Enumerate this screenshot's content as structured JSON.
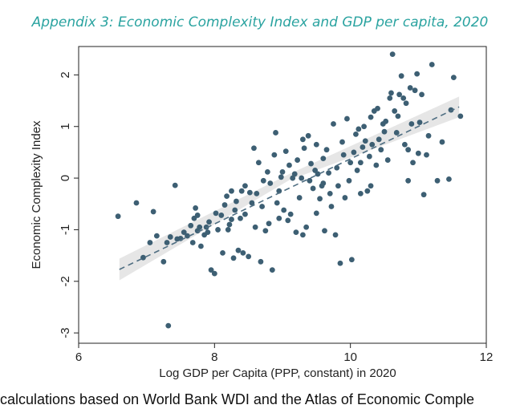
{
  "title": "Appendix 3: Economic Complexity Index and GDP per capita, 2020",
  "footnote": "calculations based on World Bank WDI and the Atlas of Economic Comple",
  "colors": {
    "title": "#2aa3a0",
    "points": "#3d5f73",
    "fit_line": "#4f6e82",
    "ci_band": "#e6e6e6"
  },
  "chart_data": {
    "type": "scatter",
    "title": "",
    "xlabel": "Log GDP per Capita (PPP, constant) in 2020",
    "ylabel": "Economic Complexity Index",
    "xlim": [
      6.0,
      12.0
    ],
    "ylim": [
      -3.2,
      2.55
    ],
    "x_ticks": [
      6,
      8,
      10,
      12
    ],
    "y_ticks": [
      2,
      1,
      0,
      -1,
      -2,
      -3
    ],
    "grid": false,
    "legend": "none",
    "fit_line": {
      "style": "dashed",
      "x_start": 6.6,
      "y_start": -1.77,
      "x_end": 11.6,
      "y_end": 1.38
    },
    "ci_band": {
      "x": [
        6.6,
        9.1,
        11.6
      ],
      "lower": [
        -1.98,
        -0.04,
        1.18
      ],
      "upper": [
        -1.56,
        0.08,
        1.58
      ]
    },
    "points": [
      [
        6.58,
        -0.74
      ],
      [
        6.85,
        -0.48
      ],
      [
        6.95,
        -1.54
      ],
      [
        7.05,
        -1.25
      ],
      [
        7.1,
        -0.65
      ],
      [
        7.15,
        -1.12
      ],
      [
        7.25,
        -1.62
      ],
      [
        7.3,
        -1.25
      ],
      [
        7.35,
        -1.14
      ],
      [
        7.32,
        -2.86
      ],
      [
        7.42,
        -0.14
      ],
      [
        7.45,
        -1.18
      ],
      [
        7.5,
        -1.17
      ],
      [
        7.55,
        -1.05
      ],
      [
        7.6,
        -1.12
      ],
      [
        7.65,
        -0.92
      ],
      [
        7.68,
        -1.25
      ],
      [
        7.7,
        -0.78
      ],
      [
        7.72,
        -0.58
      ],
      [
        7.75,
        -1.02
      ],
      [
        7.78,
        -0.95
      ],
      [
        7.8,
        -1.32
      ],
      [
        7.85,
        -1.1
      ],
      [
        7.88,
        -0.95
      ],
      [
        7.9,
        -1.05
      ],
      [
        7.92,
        -0.85
      ],
      [
        7.95,
        -1.78
      ],
      [
        8.0,
        -1.85
      ],
      [
        8.02,
        -0.68
      ],
      [
        8.05,
        -1.0
      ],
      [
        8.1,
        -0.72
      ],
      [
        8.12,
        -1.45
      ],
      [
        8.15,
        -0.52
      ],
      [
        8.18,
        -0.35
      ],
      [
        8.2,
        -1.0
      ],
      [
        8.22,
        -0.9
      ],
      [
        8.25,
        -0.8
      ],
      [
        8.28,
        -1.55
      ],
      [
        8.3,
        -0.62
      ],
      [
        8.32,
        -0.45
      ],
      [
        8.35,
        -1.4
      ],
      [
        8.38,
        -0.78
      ],
      [
        8.4,
        -0.25
      ],
      [
        8.42,
        -1.45
      ],
      [
        8.45,
        -0.7
      ],
      [
        8.5,
        -1.52
      ],
      [
        8.52,
        -0.28
      ],
      [
        8.55,
        -0.48
      ],
      [
        8.58,
        0.58
      ],
      [
        8.6,
        -0.95
      ],
      [
        8.62,
        -0.3
      ],
      [
        8.65,
        0.3
      ],
      [
        8.68,
        -1.62
      ],
      [
        8.7,
        -0.55
      ],
      [
        8.72,
        -0.05
      ],
      [
        8.75,
        -1.02
      ],
      [
        8.78,
        0.12
      ],
      [
        8.8,
        -0.88
      ],
      [
        8.82,
        -0.1
      ],
      [
        8.85,
        -1.78
      ],
      [
        8.88,
        0.45
      ],
      [
        8.9,
        0.88
      ],
      [
        8.92,
        -0.48
      ],
      [
        8.95,
        -0.25
      ],
      [
        8.98,
        0.02
      ],
      [
        9.0,
        0.12
      ],
      [
        9.02,
        -0.62
      ],
      [
        9.05,
        0.52
      ],
      [
        9.08,
        -0.82
      ],
      [
        9.1,
        0.25
      ],
      [
        9.12,
        -0.7
      ],
      [
        9.15,
        0.0
      ],
      [
        9.18,
        0.08
      ],
      [
        9.2,
        -1.05
      ],
      [
        9.22,
        0.35
      ],
      [
        9.25,
        -0.38
      ],
      [
        9.28,
        0.0
      ],
      [
        9.3,
        -1.1
      ],
      [
        9.32,
        0.58
      ],
      [
        9.35,
        -0.95
      ],
      [
        9.38,
        0.82
      ],
      [
        9.4,
        -0.05
      ],
      [
        9.42,
        0.28
      ],
      [
        9.45,
        -0.2
      ],
      [
        9.48,
        0.15
      ],
      [
        9.5,
        -0.68
      ],
      [
        9.52,
        0.08
      ],
      [
        9.55,
        -0.4
      ],
      [
        9.58,
        -0.15
      ],
      [
        9.6,
        0.38
      ],
      [
        9.62,
        -1.02
      ],
      [
        9.65,
        0.55
      ],
      [
        9.68,
        0.1
      ],
      [
        9.7,
        -0.3
      ],
      [
        9.72,
        -0.55
      ],
      [
        9.75,
        1.05
      ],
      [
        9.78,
        -1.1
      ],
      [
        9.8,
        0.2
      ],
      [
        9.82,
        -0.15
      ],
      [
        9.85,
        -1.65
      ],
      [
        9.88,
        0.7
      ],
      [
        9.9,
        0.45
      ],
      [
        9.92,
        -0.38
      ],
      [
        9.95,
        1.15
      ],
      [
        9.98,
        -0.05
      ],
      [
        10.0,
        0.3
      ],
      [
        10.02,
        -1.58
      ],
      [
        10.05,
        0.5
      ],
      [
        10.08,
        0.85
      ],
      [
        10.1,
        0.15
      ],
      [
        10.12,
        0.95
      ],
      [
        10.15,
        -0.3
      ],
      [
        10.18,
        0.6
      ],
      [
        10.2,
        1.0
      ],
      [
        10.22,
        0.72
      ],
      [
        10.25,
        -0.25
      ],
      [
        10.28,
        0.42
      ],
      [
        10.3,
        1.18
      ],
      [
        10.32,
        0.65
      ],
      [
        10.35,
        1.3
      ],
      [
        10.38,
        0.25
      ],
      [
        10.4,
        1.35
      ],
      [
        10.42,
        0.75
      ],
      [
        10.45,
        0.55
      ],
      [
        10.48,
        1.05
      ],
      [
        10.5,
        0.9
      ],
      [
        10.52,
        1.1
      ],
      [
        10.55,
        0.35
      ],
      [
        10.58,
        1.55
      ],
      [
        10.6,
        1.65
      ],
      [
        10.62,
        2.4
      ],
      [
        10.65,
        1.3
      ],
      [
        10.68,
        0.88
      ],
      [
        10.7,
        1.2
      ],
      [
        10.72,
        1.62
      ],
      [
        10.75,
        1.98
      ],
      [
        10.78,
        1.55
      ],
      [
        10.8,
        0.65
      ],
      [
        10.82,
        1.45
      ],
      [
        10.85,
        0.55
      ],
      [
        10.88,
        1.75
      ],
      [
        10.9,
        1.05
      ],
      [
        10.92,
        0.3
      ],
      [
        10.95,
        1.7
      ],
      [
        10.98,
        2.02
      ],
      [
        11.0,
        0.48
      ],
      [
        11.02,
        1.08
      ],
      [
        11.05,
        1.62
      ],
      [
        11.08,
        -0.32
      ],
      [
        11.12,
        0.45
      ],
      [
        11.15,
        0.82
      ],
      [
        11.2,
        2.2
      ],
      [
        11.28,
        -0.05
      ],
      [
        11.35,
        0.7
      ],
      [
        11.45,
        -0.02
      ],
      [
        11.48,
        1.32
      ],
      [
        11.52,
        1.95
      ],
      [
        11.62,
        1.2
      ],
      [
        10.3,
        -0.15
      ],
      [
        10.85,
        -0.05
      ],
      [
        9.5,
        0.65
      ],
      [
        8.95,
        -0.78
      ],
      [
        9.3,
        0.75
      ],
      [
        9.6,
        -0.1
      ],
      [
        10.15,
        0.3
      ],
      [
        8.45,
        -0.15
      ],
      [
        7.75,
        -0.72
      ],
      [
        8.25,
        -0.25
      ]
    ]
  }
}
